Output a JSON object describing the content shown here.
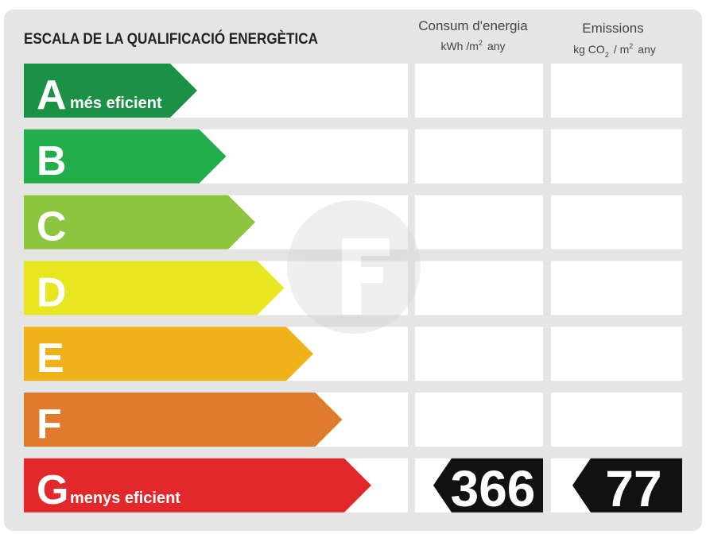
{
  "header": {
    "title": "ESCALA DE LA QUALIFICACIÓ ENERGÈTICA",
    "consum": {
      "title": "Consum d'energia",
      "unit": [
        "kWh /m",
        "2",
        "any"
      ]
    },
    "emissions": {
      "title": "Emissions",
      "unit": [
        "kg CO",
        "2",
        "/ m",
        "2",
        "any"
      ]
    }
  },
  "rows": [
    {
      "letter": "A",
      "label": "més eficient",
      "color": "#1b9146"
    },
    {
      "letter": "B",
      "color": "#22af4b"
    },
    {
      "letter": "C",
      "color": "#8dc540"
    },
    {
      "letter": "D",
      "color": "#e8e620"
    },
    {
      "letter": "E",
      "color": "#f0b21a"
    },
    {
      "letter": "F",
      "color": "#e07a2c"
    },
    {
      "letter": "G",
      "label": "menys eficient",
      "color": "#e3282c",
      "consum": 366,
      "emissions": 77
    }
  ]
}
